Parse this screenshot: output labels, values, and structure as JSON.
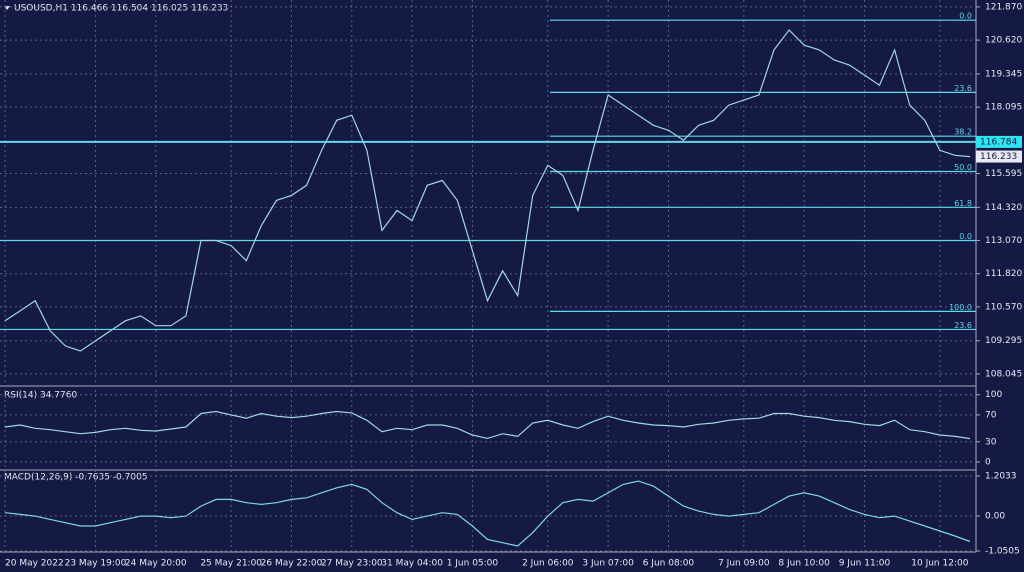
{
  "chart_data": [
    {
      "type": "line",
      "title": "USOUSD,H1  116.466 116.504 116.025 116.233",
      "color": "#9fd8e0",
      "categories": [
        "20 May 2022",
        null,
        null,
        null,
        null,
        null,
        "23 May 19:00",
        null,
        null,
        null,
        "24 May 20:00",
        null,
        null,
        null,
        null,
        "25 May 21:00",
        null,
        null,
        null,
        "26 May 22:00",
        null,
        null,
        null,
        "27 May 23:00",
        null,
        null,
        null,
        "31 May 04:00",
        null,
        null,
        null,
        "1 Jun 05:00",
        null,
        null,
        null,
        null,
        "2 Jun 06:00",
        null,
        null,
        null,
        "3 Jun 07:00",
        null,
        null,
        null,
        "6 Jun 08:00",
        null,
        null,
        null,
        null,
        "7 Jun 09:00",
        null,
        null,
        null,
        "8 Jun 10:00",
        null,
        null,
        null,
        "9 Jun 11:00",
        null,
        null,
        null,
        null,
        "10 Jun 12:00",
        null,
        null
      ],
      "values": [
        110.05,
        110.42,
        110.8,
        109.67,
        109.1,
        108.91,
        109.29,
        109.67,
        110.05,
        110.23,
        109.86,
        109.86,
        110.23,
        113.07,
        113.07,
        112.88,
        112.31,
        113.63,
        114.58,
        114.77,
        115.15,
        116.47,
        117.6,
        117.79,
        116.47,
        113.45,
        114.2,
        113.82,
        115.15,
        115.33,
        114.58,
        112.69,
        110.8,
        111.93,
        110.99,
        114.77,
        115.9,
        115.52,
        114.2,
        116.47,
        118.55,
        118.17,
        117.79,
        117.41,
        117.22,
        116.85,
        117.41,
        117.6,
        118.17,
        118.36,
        118.55,
        120.25,
        121.0,
        120.43,
        120.25,
        119.87,
        119.68,
        119.3,
        118.92,
        120.25,
        118.17,
        117.6,
        116.47,
        116.28,
        116.233
      ],
      "ylim": [
        107.59,
        122.13
      ],
      "yticks": [
        {
          "value": 121.87,
          "label": "121.870"
        },
        {
          "value": 120.62,
          "label": "120.620"
        },
        119.345,
        118.095,
        115.595,
        {
          "value": 114.32,
          "label": "114.320"
        },
        {
          "value": 113.07,
          "label": "113.070"
        },
        {
          "value": 111.82,
          "label": "111.820"
        },
        {
          "value": 110.57,
          "label": "110.570"
        },
        109.295,
        108.045
      ],
      "grid": true,
      "fib_levels": [
        {
          "label": "0.0",
          "value": 121.37
        },
        {
          "label": "23.6",
          "value": 118.65
        },
        {
          "label": "38.2",
          "value": 117.0
        },
        {
          "label": "50.0",
          "value": 115.67
        },
        {
          "label": "61.8",
          "value": 114.32
        },
        {
          "label": "100.0",
          "value": 110.4
        }
      ],
      "horizontal_lines": [
        {
          "value": 116.784
        },
        {
          "value": 113.07,
          "label": "0.0"
        },
        {
          "value": 109.72,
          "label": "23.6"
        }
      ],
      "price_tags": [
        {
          "value": 116.784,
          "color": "#2ee6f0"
        },
        {
          "value": 116.233,
          "color": "#e8e8f0"
        }
      ]
    },
    {
      "type": "line",
      "title": "RSI(14) 34.7760",
      "color": "#9fd8e0",
      "values": [
        52,
        55,
        50,
        48,
        45,
        42,
        44,
        48,
        50,
        47,
        46,
        49,
        52,
        72,
        75,
        70,
        65,
        72,
        68,
        66,
        68,
        72,
        75,
        73,
        62,
        45,
        50,
        48,
        55,
        55,
        50,
        40,
        35,
        42,
        38,
        58,
        62,
        55,
        50,
        60,
        68,
        62,
        58,
        55,
        54,
        52,
        56,
        58,
        62,
        64,
        65,
        72,
        72,
        68,
        66,
        62,
        60,
        56,
        54,
        62,
        48,
        45,
        40,
        38,
        34.776
      ],
      "ylim": [
        -12,
        110
      ],
      "yticks": [
        100,
        70,
        30,
        0
      ],
      "grid": true
    },
    {
      "type": "line",
      "title": "MACD(12,26,9) -0.7635 -0.7005",
      "color": "#7fd6e6",
      "values": [
        0.1,
        0.05,
        0,
        -0.1,
        -0.2,
        -0.3,
        -0.3,
        -0.2,
        -0.1,
        0,
        0,
        -0.05,
        0,
        0.3,
        0.5,
        0.5,
        0.4,
        0.35,
        0.4,
        0.5,
        0.55,
        0.7,
        0.85,
        0.95,
        0.8,
        0.4,
        0.1,
        -0.1,
        0,
        0.1,
        0.05,
        -0.3,
        -0.7,
        -0.8,
        -0.9,
        -0.5,
        0,
        0.4,
        0.5,
        0.45,
        0.7,
        0.95,
        1.05,
        0.9,
        0.6,
        0.3,
        0.15,
        0.05,
        0,
        0.05,
        0.1,
        0.35,
        0.6,
        0.7,
        0.6,
        0.4,
        0.2,
        0.05,
        -0.05,
        0,
        -0.15,
        -0.3,
        -0.45,
        -0.6,
        -0.7635
      ],
      "ylim": [
        -1.08,
        1.384
      ],
      "yticks": [
        1.2033,
        {
          "value": 0,
          "label": "0.00"
        },
        -1.0505
      ],
      "grid": true
    }
  ]
}
